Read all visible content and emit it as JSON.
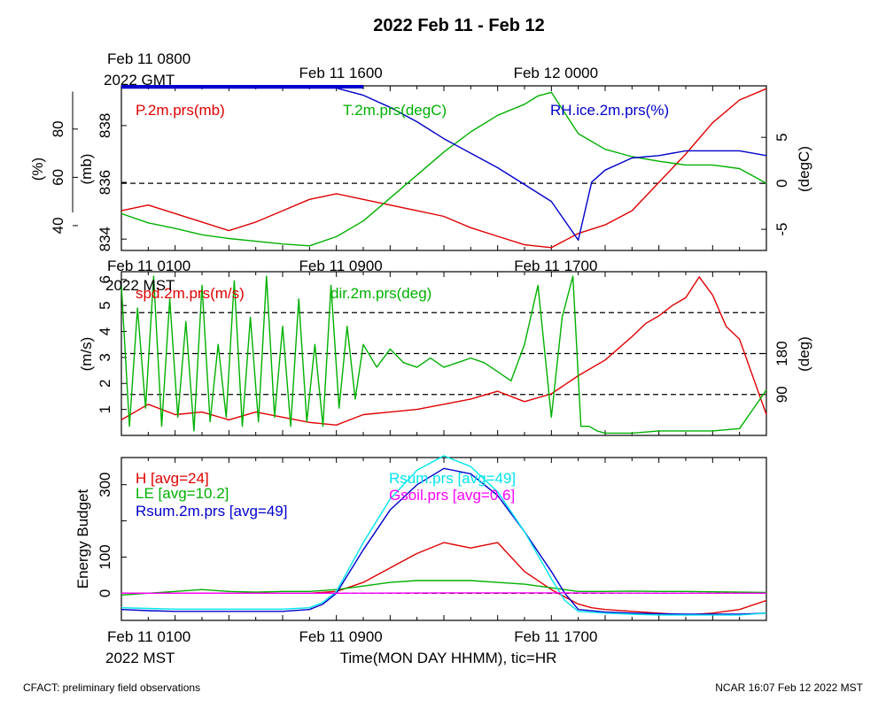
{
  "title": "2022 Feb 11 - Feb 12",
  "footer_left": "CFACT: preliminary field observations",
  "footer_right": "NCAR 16:07 Feb 12 2022 MST",
  "top_axis_labels": [
    {
      "text": "Feb 11 0800",
      "h": 0
    },
    {
      "text": "Feb 11 1600",
      "h": 8
    },
    {
      "text": "Feb 12 0000",
      "h": 16
    }
  ],
  "top_axis_sub": "2022 GMT",
  "bottom_axis_labels": [
    {
      "text": "Feb 11 0100",
      "h": 0
    },
    {
      "text": "Feb 11 0900",
      "h": 8
    },
    {
      "text": "Feb 11 1700",
      "h": 16
    }
  ],
  "bottom_axis_sub": "2022 MST",
  "xlabel": "Time(MON DAY HHMM), tic=HR",
  "colors": {
    "red": "#e00000",
    "green": "#00b000",
    "blue": "#0000cc",
    "cyan": "#00e5ee",
    "magenta": "#ff00ff"
  },
  "chart_data": [
    {
      "type": "line",
      "panel": "pressure-temperature-rh",
      "x_hours_range": [
        0,
        24
      ],
      "left_axis": {
        "label": "(mb)",
        "ylim": [
          833.6,
          839.4
        ],
        "ticks": [
          "834",
          "836",
          "838"
        ]
      },
      "far_left_axis": {
        "label": "(%)",
        "ylim": [
          29.7,
          97.9
        ],
        "ticks": [
          "40",
          "60",
          "80"
        ]
      },
      "right_axis": {
        "label": "(degC)",
        "ylim": [
          -7.3,
          10.6
        ],
        "ticks": [
          "-5",
          "0",
          "5"
        ]
      },
      "ref_lines": [
        {
          "axis": "right",
          "value": 0
        }
      ],
      "series": [
        {
          "name": "P.2m.prs(mb)",
          "axis": "left",
          "color": "#e00000",
          "x": [
            0,
            1,
            2,
            3,
            4,
            5,
            6,
            7,
            8,
            9,
            10,
            11,
            12,
            13,
            14,
            15,
            16,
            17,
            18,
            19,
            20,
            21,
            22,
            23,
            24
          ],
          "y": [
            835.0,
            835.2,
            834.9,
            834.6,
            834.3,
            834.6,
            835.0,
            835.4,
            835.6,
            835.4,
            835.2,
            835.0,
            834.8,
            834.4,
            834.1,
            833.8,
            833.7,
            834.2,
            834.5,
            835.0,
            836.0,
            837.0,
            838.1,
            838.9,
            839.3
          ]
        },
        {
          "name": "T.2m.prs(degC)",
          "axis": "right",
          "color": "#00b000",
          "x": [
            0,
            1,
            2,
            3,
            4,
            5,
            6,
            7,
            8,
            9,
            10,
            11,
            12,
            13,
            14,
            15,
            15.5,
            16,
            17,
            18,
            19,
            20,
            21,
            22,
            23,
            24
          ],
          "y": [
            -3.3,
            -4.3,
            -4.9,
            -5.6,
            -6.0,
            -6.3,
            -6.6,
            -6.8,
            -5.8,
            -4.1,
            -1.6,
            0.9,
            3.4,
            5.6,
            7.4,
            8.6,
            9.5,
            9.9,
            5.4,
            3.7,
            2.9,
            2.4,
            2.0,
            2.0,
            1.6,
            0.0
          ]
        },
        {
          "name": "RH.ice.2m.prs(%)",
          "axis": "far_left",
          "color": "#0000cc",
          "x": [
            0,
            1,
            2,
            3,
            4,
            5,
            6,
            7,
            8,
            9,
            10,
            11,
            12,
            13,
            14,
            15,
            16,
            17,
            17.5,
            18,
            19,
            20,
            21,
            22,
            23,
            24
          ],
          "y": [
            97,
            97,
            97,
            97,
            97,
            97,
            97,
            97,
            97,
            94,
            89,
            83,
            76,
            70,
            64,
            57,
            50,
            34,
            58,
            63,
            68,
            69,
            71,
            71,
            71,
            69
          ]
        }
      ]
    },
    {
      "type": "line",
      "panel": "wind",
      "x_hours_range": [
        0,
        24
      ],
      "left_axis": {
        "label": "(m/s)",
        "ylim": [
          0,
          6.3
        ],
        "ticks": [
          "1",
          "2",
          "3",
          "4",
          "5",
          "6"
        ]
      },
      "right_axis": {
        "label": "(deg)",
        "ylim": [
          0,
          360
        ],
        "ticks": [
          "90",
          "180"
        ]
      },
      "ref_lines": [
        {
          "axis": "right",
          "value": 90
        },
        {
          "axis": "right",
          "value": 180
        },
        {
          "axis": "right",
          "value": 270
        }
      ],
      "series": [
        {
          "name": "spd.2m.prs(m/s)",
          "axis": "left",
          "color": "#e00000",
          "x": [
            0,
            1,
            2,
            3,
            4,
            5,
            6,
            7,
            8,
            9,
            10,
            11,
            12,
            13,
            14,
            15,
            16,
            17,
            18,
            19,
            19.5,
            20,
            20.5,
            21,
            21.5,
            22,
            22.5,
            23,
            24
          ],
          "y": [
            0.6,
            1.2,
            0.8,
            0.9,
            0.6,
            0.9,
            0.7,
            0.5,
            0.4,
            0.8,
            0.9,
            1.0,
            1.2,
            1.4,
            1.7,
            1.3,
            1.6,
            2.3,
            2.9,
            3.8,
            4.3,
            4.6,
            5.0,
            5.3,
            6.1,
            5.4,
            4.2,
            3.7,
            0.8
          ]
        },
        {
          "name": "dir.2m.prs(deg)",
          "axis": "right",
          "color": "#00b000",
          "x": [
            0,
            0.3,
            0.6,
            0.9,
            1.2,
            1.5,
            1.8,
            2.1,
            2.4,
            2.7,
            3.0,
            3.3,
            3.6,
            3.9,
            4.2,
            4.5,
            4.8,
            5.1,
            5.4,
            5.7,
            6.0,
            6.3,
            6.6,
            6.9,
            7.2,
            7.5,
            7.8,
            8.1,
            8.4,
            8.7,
            9.0,
            9.5,
            10.0,
            10.5,
            11.0,
            11.5,
            12.0,
            12.5,
            13.0,
            13.5,
            14.0,
            14.5,
            15.0,
            15.5,
            16.0,
            16.4,
            16.8,
            17.1,
            17.4,
            17.7,
            18.0,
            19.0,
            20.0,
            21.0,
            22.0,
            23.0,
            24.0
          ],
          "y": [
            330,
            20,
            280,
            60,
            350,
            20,
            300,
            40,
            250,
            10,
            330,
            30,
            200,
            40,
            340,
            20,
            260,
            30,
            350,
            40,
            240,
            20,
            300,
            30,
            200,
            20,
            330,
            60,
            240,
            80,
            200,
            150,
            190,
            160,
            150,
            170,
            150,
            160,
            170,
            160,
            140,
            120,
            200,
            330,
            40,
            260,
            350,
            20,
            20,
            10,
            5,
            5,
            10,
            10,
            10,
            15,
            100
          ]
        }
      ]
    },
    {
      "type": "line",
      "panel": "energy-budget",
      "x_hours_range": [
        0,
        24
      ],
      "ylabel": "Energy Budget",
      "ylim": [
        -75,
        375
      ],
      "ticks": [
        "0",
        "100",
        "300"
      ],
      "ref_lines": [
        {
          "value": 0
        }
      ],
      "series": [
        {
          "name": "H [avg=24]",
          "color": "#e00000",
          "x": [
            0,
            1,
            2,
            3,
            4,
            5,
            6,
            7,
            8,
            9,
            10,
            11,
            12,
            13,
            14,
            15,
            16,
            17,
            17.5,
            18,
            19,
            20,
            21,
            22,
            23,
            24
          ],
          "y": [
            0,
            0,
            0,
            0,
            0,
            0,
            0,
            0,
            5,
            30,
            70,
            110,
            140,
            125,
            140,
            60,
            10,
            -30,
            -40,
            -45,
            -50,
            -55,
            -60,
            -55,
            -45,
            -20
          ]
        },
        {
          "name": "LE [avg=10.2]",
          "color": "#00b000",
          "x": [
            0,
            1,
            2,
            3,
            4,
            5,
            6,
            7,
            8,
            9,
            10,
            11,
            12,
            13,
            14,
            15,
            16,
            17,
            18,
            19,
            20,
            21,
            22,
            23,
            24
          ],
          "y": [
            -5,
            0,
            5,
            10,
            5,
            3,
            5,
            5,
            10,
            20,
            30,
            35,
            35,
            35,
            30,
            25,
            15,
            5,
            5,
            6,
            5,
            5,
            4,
            3,
            2
          ]
        },
        {
          "name": "Rsum.2m.prs [avg=49]",
          "color": "#0000cc",
          "x": [
            0,
            1,
            2,
            3,
            4,
            5,
            6,
            7,
            7.5,
            8,
            9,
            10,
            11,
            12,
            13,
            14,
            15,
            16,
            16.5,
            17,
            18,
            19,
            20,
            21,
            22,
            23,
            24
          ],
          "y": [
            -45,
            -48,
            -50,
            -50,
            -50,
            -50,
            -50,
            -45,
            -30,
            0,
            120,
            230,
            300,
            345,
            330,
            270,
            170,
            60,
            0,
            -45,
            -52,
            -55,
            -57,
            -58,
            -58,
            -58,
            -55
          ]
        },
        {
          "name": "Rsum.prs [avg=49]",
          "color": "#00e5ee",
          "x": [
            0,
            1,
            2,
            3,
            4,
            5,
            6,
            7,
            7.5,
            8,
            9,
            10,
            11,
            12,
            13,
            14,
            15,
            16,
            16.5,
            17,
            18,
            19,
            20,
            21,
            22,
            23,
            24
          ],
          "y": [
            -40,
            -42,
            -44,
            -44,
            -44,
            -44,
            -44,
            -40,
            -25,
            5,
            140,
            260,
            340,
            380,
            350,
            280,
            170,
            40,
            -20,
            -50,
            -55,
            -58,
            -60,
            -60,
            -60,
            -60,
            -55
          ]
        },
        {
          "name": "Gsoil.prs [avg=0.6]",
          "color": "#ff00ff",
          "x": [
            0,
            4,
            8,
            12,
            16,
            20,
            24
          ],
          "y": [
            0,
            0,
            0,
            1,
            1,
            0,
            0
          ]
        }
      ]
    }
  ]
}
